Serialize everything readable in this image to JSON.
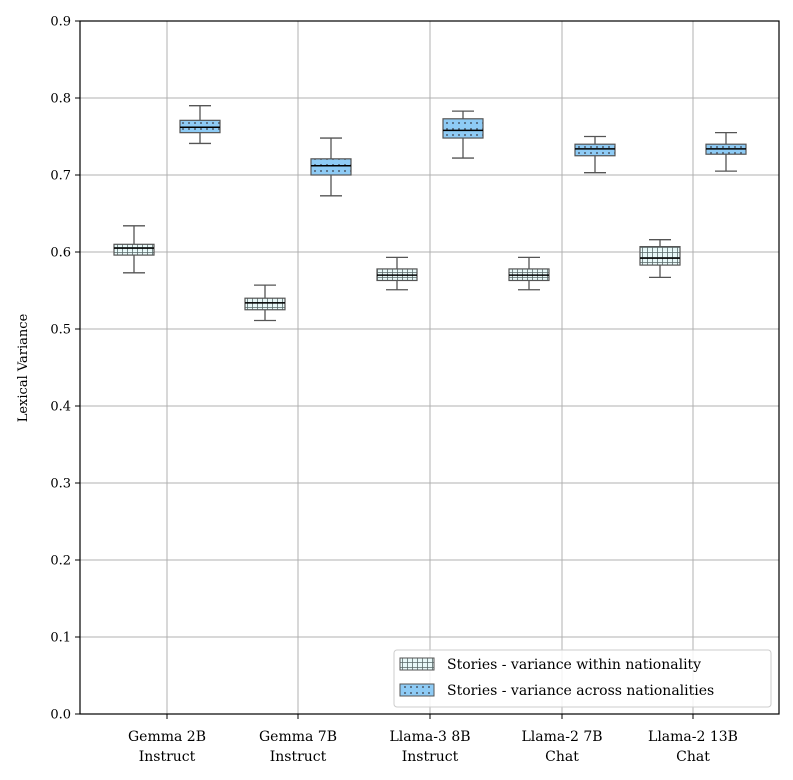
{
  "chart_data": {
    "type": "box",
    "title": "",
    "xlabel": "",
    "ylabel": "Lexical Variance",
    "ylim": [
      0.0,
      0.9
    ],
    "yticks": [
      "0.0",
      "0.1",
      "0.2",
      "0.3",
      "0.4",
      "0.5",
      "0.6",
      "0.7",
      "0.8",
      "0.9"
    ],
    "ytick_values": [
      0.0,
      0.1,
      0.2,
      0.3,
      0.4,
      0.5,
      0.6,
      0.7,
      0.8,
      0.9
    ],
    "grid": true,
    "legend_position": "bottom-right",
    "categories": [
      {
        "line1": "Gemma 2B",
        "line2": "Instruct"
      },
      {
        "line1": "Gemma 7B",
        "line2": "Instruct"
      },
      {
        "line1": "Llama-3 8B",
        "line2": "Instruct"
      },
      {
        "line1": "Llama-2 7B",
        "line2": "Chat"
      },
      {
        "line1": "Llama-2 13B",
        "line2": "Chat"
      }
    ],
    "series": [
      {
        "name": "Stories - variance within nationality",
        "color": "#e8f8f8",
        "hatch": "grid",
        "boxes": [
          {
            "min": 0.573,
            "q1": 0.596,
            "median": 0.605,
            "q3": 0.61,
            "max": 0.634
          },
          {
            "min": 0.511,
            "q1": 0.525,
            "median": 0.534,
            "q3": 0.54,
            "max": 0.557
          },
          {
            "min": 0.551,
            "q1": 0.563,
            "median": 0.57,
            "q3": 0.578,
            "max": 0.593
          },
          {
            "min": 0.551,
            "q1": 0.563,
            "median": 0.57,
            "q3": 0.578,
            "max": 0.593
          },
          {
            "min": 0.567,
            "q1": 0.583,
            "median": 0.592,
            "q3": 0.607,
            "max": 0.616
          }
        ]
      },
      {
        "name": "Stories - variance across nationalities",
        "color": "#8ecbf5",
        "hatch": "dots",
        "boxes": [
          {
            "min": 0.741,
            "q1": 0.755,
            "median": 0.762,
            "q3": 0.771,
            "max": 0.79
          },
          {
            "min": 0.673,
            "q1": 0.7,
            "median": 0.712,
            "q3": 0.721,
            "max": 0.748
          },
          {
            "min": 0.722,
            "q1": 0.748,
            "median": 0.758,
            "q3": 0.773,
            "max": 0.783
          },
          {
            "min": 0.703,
            "q1": 0.725,
            "median": 0.734,
            "q3": 0.74,
            "max": 0.75
          },
          {
            "min": 0.705,
            "q1": 0.727,
            "median": 0.734,
            "q3": 0.74,
            "max": 0.755
          }
        ]
      }
    ]
  }
}
